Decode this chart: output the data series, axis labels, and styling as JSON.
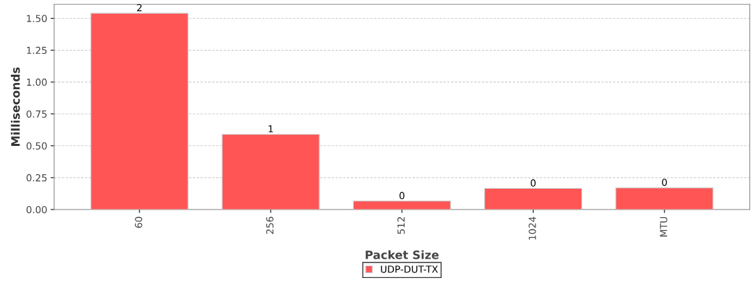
{
  "chart_data": {
    "type": "bar",
    "xlabel": "Packet Size",
    "ylabel": "Milliseconds",
    "categories": [
      "60",
      "256",
      "512",
      "1024",
      "MTU"
    ],
    "series": [
      {
        "name": "UDP-DUT-TX",
        "color": "#ff5555",
        "values": [
          1.54,
          0.59,
          0.066,
          0.165,
          0.17
        ],
        "value_labels": [
          "2",
          "1",
          "0",
          "0",
          "0"
        ]
      }
    ],
    "ylim": [
      0,
      1.61
    ],
    "yticks": [
      {
        "value": 0,
        "label": "0.00"
      },
      {
        "value": 0.25,
        "label": "0.25"
      },
      {
        "value": 0.5,
        "label": "0.50"
      },
      {
        "value": 0.75,
        "label": "0.75"
      },
      {
        "value": 1,
        "label": "1.00"
      },
      {
        "value": 1.25,
        "label": "1.25"
      },
      {
        "value": 1.5,
        "label": "1.50"
      }
    ],
    "grid": "y",
    "legend": "bottom"
  }
}
